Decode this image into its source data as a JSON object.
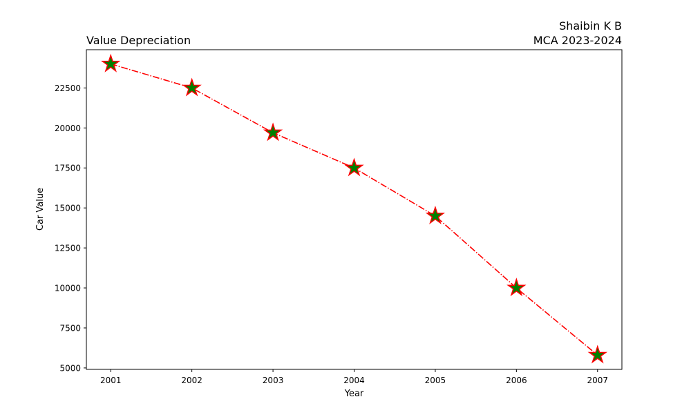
{
  "chart_data": {
    "type": "line",
    "title": "Value Depreciation",
    "title_right": [
      "Shaibin K B",
      "MCA 2023-2024"
    ],
    "xlabel": "Year",
    "ylabel": "Car Value",
    "x": [
      2001,
      2002,
      2003,
      2004,
      2005,
      2006,
      2007
    ],
    "series": [
      {
        "values": [
          24000,
          22500,
          19700,
          17500,
          14500,
          10000,
          5800
        ],
        "line_color": "#ff0000",
        "line_style": "dash-dot",
        "marker": "star",
        "marker_face_color": "#008000",
        "marker_edge_color": "#ff0000"
      }
    ],
    "xticks": [
      2001,
      2002,
      2003,
      2004,
      2005,
      2006,
      2007
    ],
    "yticks": [
      5000,
      7500,
      10000,
      12500,
      15000,
      17500,
      20000,
      22500
    ],
    "xlim": [
      2000.7,
      2007.3
    ],
    "ylim": [
      4910,
      24890
    ],
    "grid": false,
    "legend": "none"
  }
}
